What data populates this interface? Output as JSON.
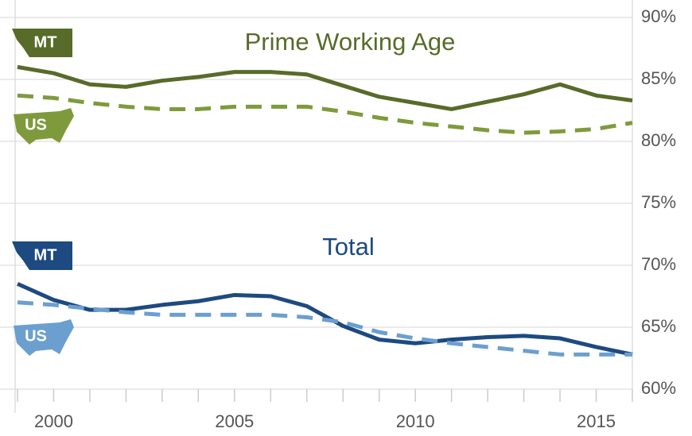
{
  "chart_data": {
    "type": "line",
    "annotations": [
      {
        "text": "Prime Working Age",
        "color": "#586b29"
      },
      {
        "text": "Total",
        "color": "#1d4a80"
      }
    ],
    "x": [
      1999,
      2000,
      2001,
      2002,
      2003,
      2004,
      2005,
      2006,
      2007,
      2008,
      2009,
      2010,
      2011,
      2012,
      2013,
      2014,
      2015,
      2016
    ],
    "series": [
      {
        "name": "MT",
        "color": "#586b29",
        "dash": false,
        "values": [
          86,
          85.5,
          84.6,
          84.4,
          84.9,
          85.2,
          85.6,
          85.6,
          85.4,
          84.5,
          83.6,
          83.1,
          82.6,
          83.2,
          83.8,
          84.6,
          83.7,
          83.3
        ]
      },
      {
        "name": "US",
        "color": "#7f9a3c",
        "dash": true,
        "values": [
          83.7,
          83.5,
          83.1,
          82.8,
          82.6,
          82.6,
          82.8,
          82.8,
          82.8,
          82.4,
          81.9,
          81.5,
          81.2,
          80.9,
          80.7,
          80.8,
          81.0,
          81.5
        ]
      },
      {
        "name": "MT",
        "color": "#1d4a80",
        "dash": false,
        "values": [
          68.5,
          67.2,
          66.4,
          66.4,
          66.8,
          67.1,
          67.6,
          67.5,
          66.7,
          65.1,
          64.0,
          63.7,
          64.0,
          64.2,
          64.3,
          64.1,
          63.4,
          62.8
        ]
      },
      {
        "name": "US",
        "color": "#6b9fcf",
        "dash": true,
        "values": [
          67.0,
          66.8,
          66.5,
          66.2,
          66.0,
          66.0,
          66.0,
          66.0,
          65.8,
          65.4,
          64.6,
          64.1,
          63.7,
          63.4,
          63.1,
          62.8,
          62.8,
          62.8
        ]
      }
    ],
    "xlim": [
      1999,
      2016
    ],
    "xticks": [
      2000,
      2005,
      2010,
      2015
    ],
    "ylim": [
      60,
      90
    ],
    "yticks": [
      {
        "value": 60,
        "label": "60%"
      },
      {
        "value": 65,
        "label": "65%"
      },
      {
        "value": 70,
        "label": "70%"
      },
      {
        "value": 75,
        "label": "75%"
      },
      {
        "value": 80,
        "label": "80%"
      },
      {
        "value": 85,
        "label": "85%"
      },
      {
        "value": 90,
        "label": "90%"
      }
    ],
    "grid": true
  }
}
